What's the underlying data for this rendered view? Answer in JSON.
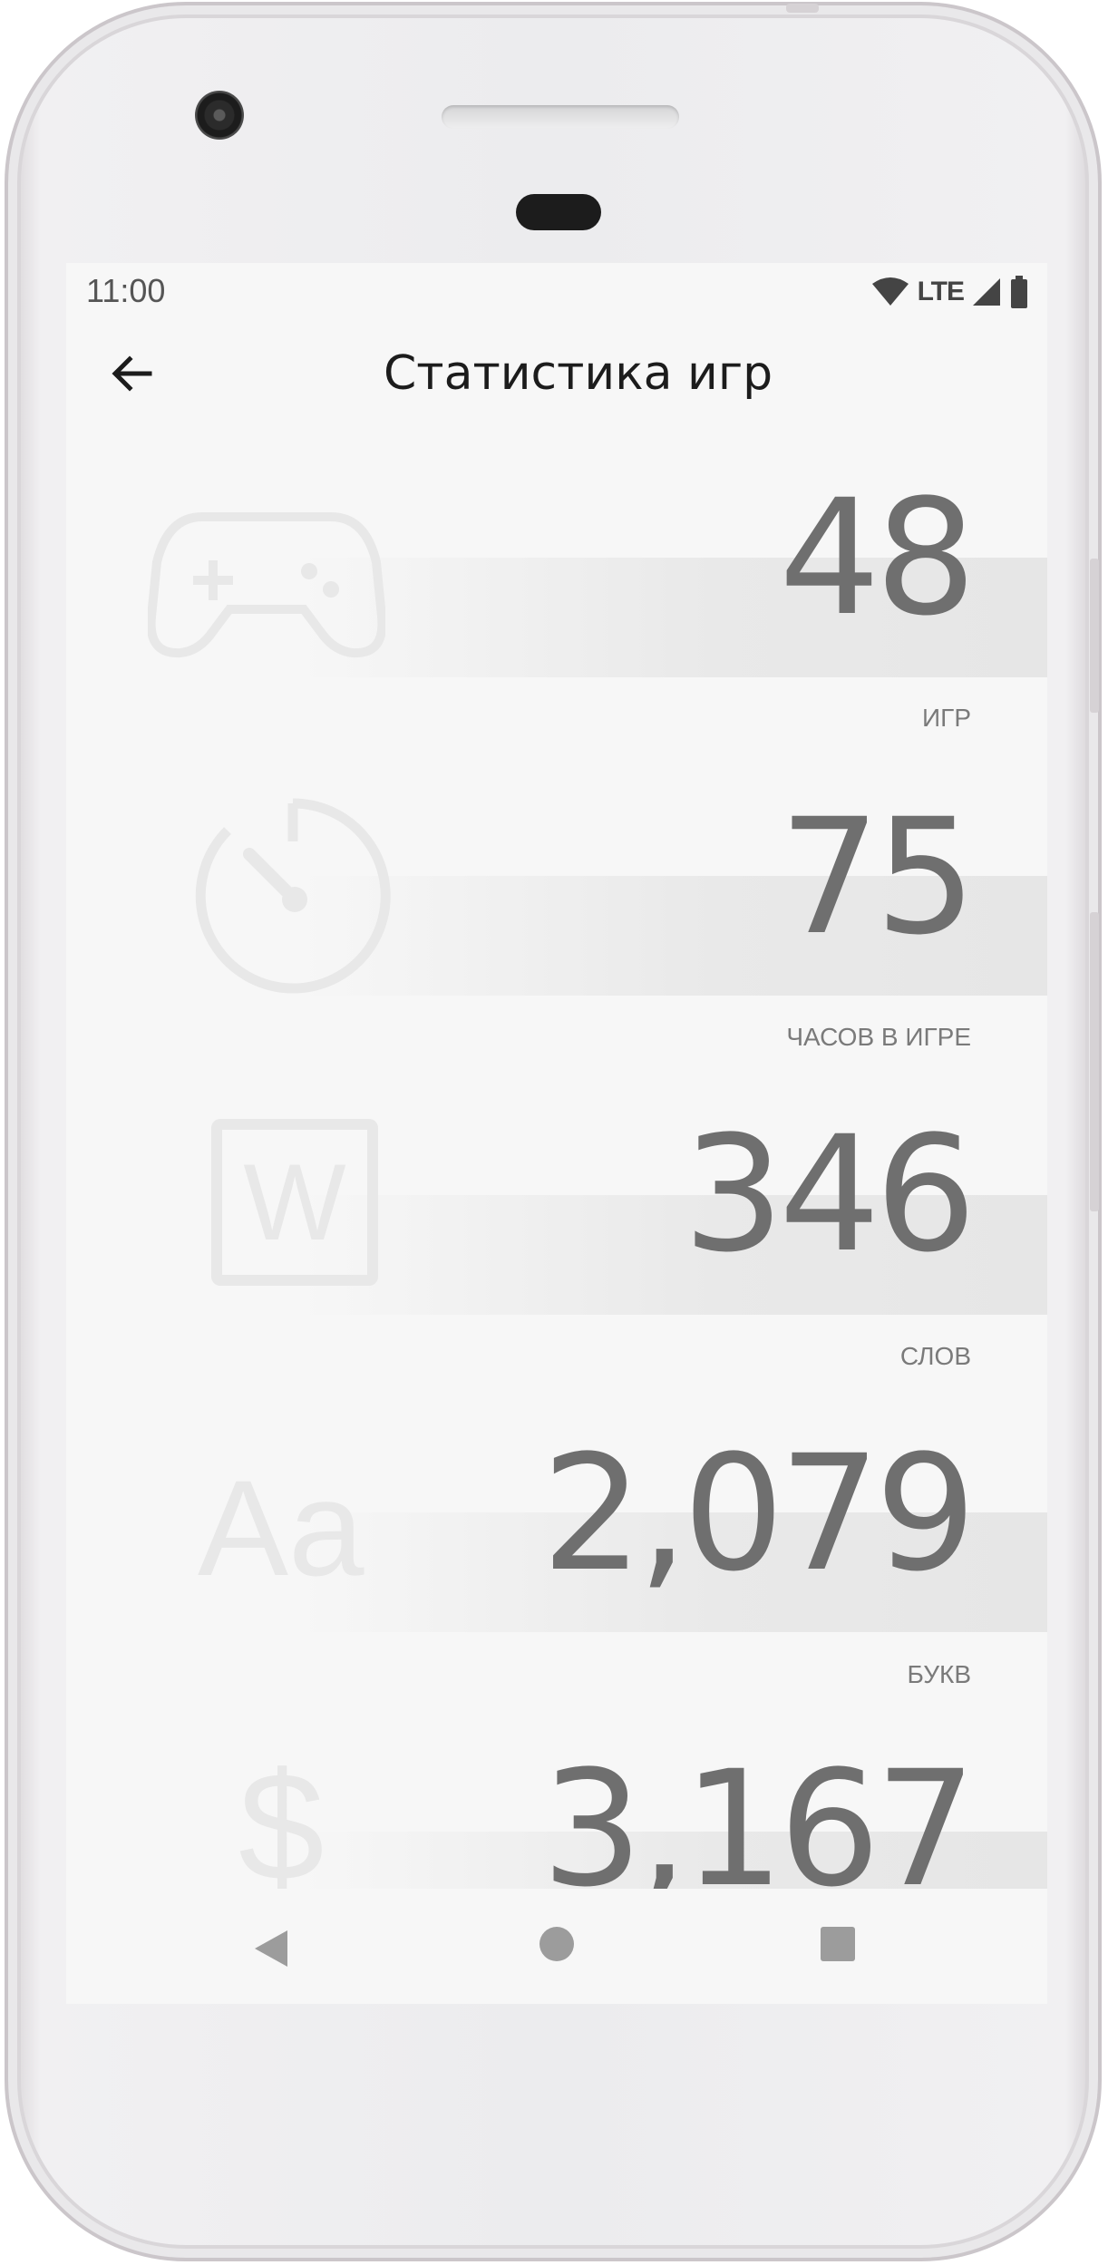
{
  "status_bar": {
    "time": "11:00",
    "network": "LTE"
  },
  "header": {
    "title": "Статистика игр"
  },
  "stats": [
    {
      "value": "48",
      "label": "ИГР",
      "icon": "gamepad-icon"
    },
    {
      "value": "75",
      "label": "ЧАСОВ В ИГРЕ",
      "icon": "timer-icon"
    },
    {
      "value": "346",
      "label": "СЛОВ",
      "icon": "word-icon"
    },
    {
      "value": "2,079",
      "label": "БУКВ",
      "icon": "letters-icon"
    },
    {
      "value": "3,167",
      "label": "",
      "icon": "dollar-icon"
    }
  ],
  "icon_glyphs": {
    "word": "W",
    "letters": "Aa",
    "dollar": "$"
  },
  "colors": {
    "screen_background": "#f7f7f7",
    "stat_value": "#6f6f6f",
    "stat_label": "#7a7a7a",
    "faded_icon": "#e8e8e8"
  }
}
